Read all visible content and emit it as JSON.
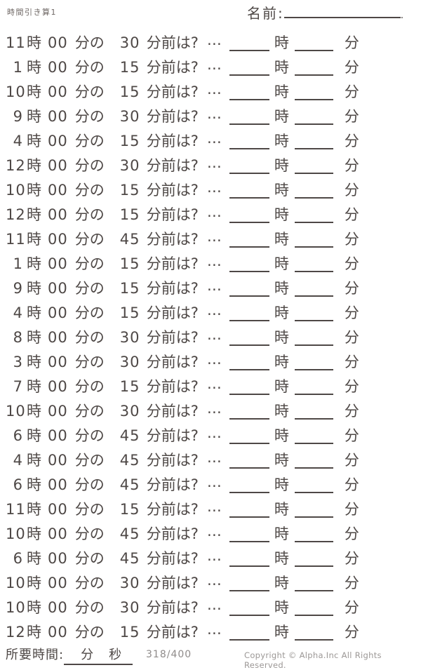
{
  "header": {
    "title": "時間引き算1",
    "name_label": "名前:",
    "name_value": "",
    "name_suffix": "."
  },
  "row_labels": {
    "hour_unit": "時",
    "zero_min": "00",
    "min_of": "分の",
    "before_suffix": "分前は?",
    "ellipsis": "…",
    "ans_hour_unit": "時",
    "ans_min_unit": "分"
  },
  "problems": [
    {
      "hour": "11",
      "before": "30"
    },
    {
      "hour": "1",
      "before": "15"
    },
    {
      "hour": "10",
      "before": "15"
    },
    {
      "hour": "9",
      "before": "30"
    },
    {
      "hour": "4",
      "before": "15"
    },
    {
      "hour": "12",
      "before": "30"
    },
    {
      "hour": "10",
      "before": "15"
    },
    {
      "hour": "12",
      "before": "15"
    },
    {
      "hour": "11",
      "before": "45"
    },
    {
      "hour": "1",
      "before": "15"
    },
    {
      "hour": "9",
      "before": "15"
    },
    {
      "hour": "4",
      "before": "15"
    },
    {
      "hour": "8",
      "before": "30"
    },
    {
      "hour": "3",
      "before": "30"
    },
    {
      "hour": "7",
      "before": "15"
    },
    {
      "hour": "10",
      "before": "30"
    },
    {
      "hour": "6",
      "before": "45"
    },
    {
      "hour": "4",
      "before": "45"
    },
    {
      "hour": "6",
      "before": "45"
    },
    {
      "hour": "11",
      "before": "15"
    },
    {
      "hour": "10",
      "before": "45"
    },
    {
      "hour": "6",
      "before": "45"
    },
    {
      "hour": "10",
      "before": "30"
    },
    {
      "hour": "10",
      "before": "30"
    },
    {
      "hour": "12",
      "before": "15"
    }
  ],
  "footer": {
    "time_label": "所要時間:",
    "min_unit": "分",
    "sec_unit": "秒",
    "progress": "318/400",
    "copyright": "Copyright ©  Alpha.Inc All Rights Reserved."
  },
  "colors": {
    "text": "#4e4846",
    "muted": "#8f8b8a"
  }
}
